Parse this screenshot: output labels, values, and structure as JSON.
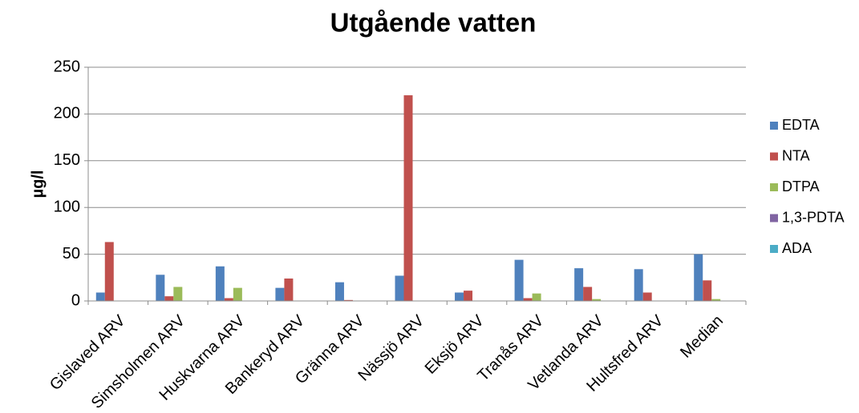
{
  "chart_data": {
    "type": "bar",
    "title": "Utgående vatten",
    "y_label": "µg/l",
    "categories": [
      "Gislaved ARV",
      "Simsholmen ARV",
      "Huskvarna ARV",
      "Bankeryd ARV",
      "Gränna ARV",
      "Nässjö ARV",
      "Eksjö ARV",
      "Tranås ARV",
      "Vetlanda ARV",
      "Hultsfred ARV",
      "Median"
    ],
    "series": [
      {
        "name": "EDTA",
        "color": "#4f81bd",
        "values": [
          9,
          28,
          37,
          14,
          20,
          27,
          9,
          44,
          35,
          34,
          50
        ]
      },
      {
        "name": "NTA",
        "color": "#c0504d",
        "values": [
          63,
          5,
          3,
          24,
          1,
          220,
          11,
          3,
          15,
          9,
          22
        ]
      },
      {
        "name": "DTPA",
        "color": "#9bbb59",
        "values": [
          0,
          15,
          14,
          0,
          0,
          0,
          0,
          8,
          2,
          0,
          2
        ]
      },
      {
        "name": "1,3-PDTA",
        "color": "#8064a2",
        "values": [
          0,
          0,
          0,
          0,
          0,
          0,
          0,
          0,
          0,
          0,
          0
        ]
      },
      {
        "name": "ADA",
        "color": "#4bacc6",
        "values": [
          0,
          0,
          0,
          0,
          0,
          0,
          0,
          0,
          0,
          0,
          0
        ]
      }
    ],
    "ylim": [
      0,
      250
    ],
    "yticks": [
      0,
      50,
      100,
      150,
      200,
      250
    ],
    "grid": true,
    "legend": "right"
  }
}
